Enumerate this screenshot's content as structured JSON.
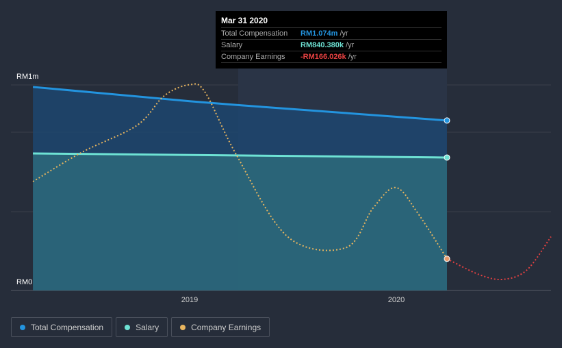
{
  "tooltip": {
    "date": "Mar 31 2020",
    "rows": [
      {
        "label": "Total Compensation",
        "value": "RM1.074m",
        "unit": "/yr",
        "color": "#2394df"
      },
      {
        "label": "Salary",
        "value": "RM840.380k",
        "unit": "/yr",
        "color": "#6ee2d4"
      },
      {
        "label": "Company Earnings",
        "value": "-RM166.026k",
        "unit": "/yr",
        "color": "#e64141"
      }
    ]
  },
  "legend": [
    {
      "label": "Total Compensation",
      "color": "#2394df"
    },
    {
      "label": "Salary",
      "color": "#6ee2d4"
    },
    {
      "label": "Company Earnings",
      "color": "#e8b55f"
    }
  ],
  "chart_data": {
    "type": "line",
    "y_tick_labels": [
      "RM1m",
      "RM0"
    ],
    "x_tick_labels": [
      "2019",
      "2020"
    ],
    "x_ticks": [
      2019,
      2020
    ],
    "xlim": [
      2018.24,
      2020.75
    ],
    "series": [
      {
        "name": "Total Compensation",
        "unit": "RM m",
        "x": [
          2018.242,
          2019,
          2019.25,
          2020.245
        ],
        "values": [
          1.286,
          1.196,
          1.17,
          1.074
        ],
        "color": "#2394df"
      },
      {
        "name": "Salary",
        "unit": "RM m",
        "x": [
          2018.242,
          2020.245
        ],
        "values": [
          0.866,
          0.84
        ],
        "color": "#6ee2d4"
      },
      {
        "name": "Company Earnings",
        "unit": "relative",
        "x": [
          2018.242,
          2018.48,
          2018.745,
          2018.877,
          2019,
          2019.076,
          2019.225,
          2019.474,
          2019.755,
          2019.887,
          2019.997,
          2020.103,
          2020.245,
          2020.401,
          2020.517,
          2020.632,
          2020.748
        ],
        "values": [
          0.688,
          0.874,
          1.043,
          1.23,
          1.3,
          1.25,
          0.86,
          0.34,
          0.27,
          0.52,
          0.65,
          0.49,
          0.2,
          0.1,
          0.07,
          0.13,
          0.34
        ],
        "color": "#e8b55f",
        "forecast_color": "#e64141"
      }
    ]
  }
}
